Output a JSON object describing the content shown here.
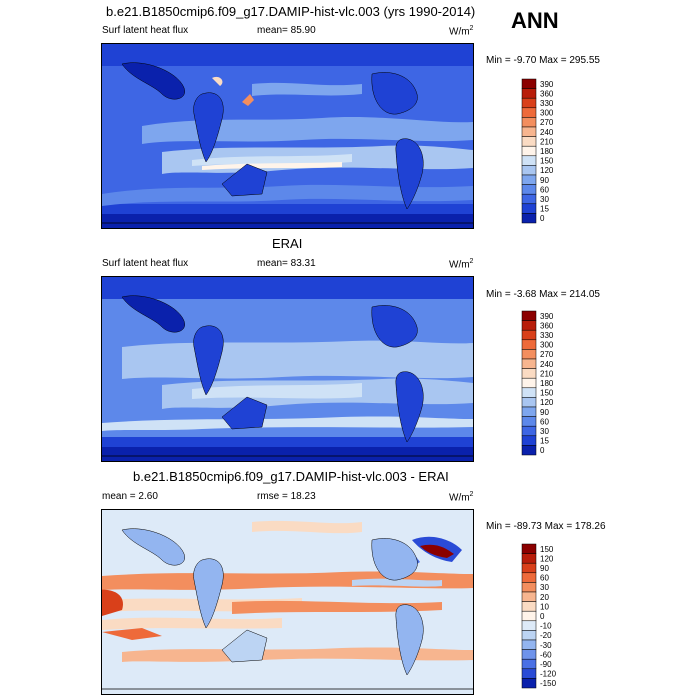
{
  "season": "ANN",
  "panels": [
    {
      "title": "b.e21.B1850cmip6.f09_g17.DAMIP-hist-vlc.003 (yrs 1990-2014)",
      "left_label": "Surf latent heat flux",
      "center_label": "mean=  85.90",
      "units_base": "W/m",
      "units_exp": "2",
      "minmax": "Min =  -9.70 Max = 295.55",
      "colorbar_labels": [
        "390",
        "360",
        "330",
        "300",
        "270",
        "240",
        "210",
        "180",
        "150",
        "120",
        "90",
        "60",
        "30",
        "15",
        "0"
      ],
      "colorbar_colors": [
        "#8b0000",
        "#b81d0a",
        "#d9401a",
        "#ee6a3a",
        "#f38e5e",
        "#f7b58f",
        "#fadbc3",
        "#fff4ea",
        "#cfe2f6",
        "#a9c6f1",
        "#7ea6ee",
        "#5d88ea",
        "#3e66e4",
        "#1f42d4",
        "#0a21ac"
      ]
    },
    {
      "title": "ERAI",
      "left_label": "Surf latent heat flux",
      "center_label": "mean=  83.31",
      "units_base": "W/m",
      "units_exp": "2",
      "minmax": "Min =  -3.68 Max = 214.05",
      "colorbar_labels": [
        "390",
        "360",
        "330",
        "300",
        "270",
        "240",
        "210",
        "180",
        "150",
        "120",
        "90",
        "60",
        "30",
        "15",
        "0"
      ],
      "colorbar_colors": [
        "#8b0000",
        "#b81d0a",
        "#d9401a",
        "#ee6a3a",
        "#f38e5e",
        "#f7b58f",
        "#fadbc3",
        "#fff4ea",
        "#cfe2f6",
        "#a9c6f1",
        "#7ea6ee",
        "#5d88ea",
        "#3e66e4",
        "#1f42d4",
        "#0a21ac"
      ]
    },
    {
      "title": "b.e21.B1850cmip6.f09_g17.DAMIP-hist-vlc.003 - ERAI",
      "left_label": "mean =   2.60",
      "center_label": "rmse =  18.23",
      "units_base": "W/m",
      "units_exp": "2",
      "minmax": "Min = -89.73 Max = 178.26",
      "colorbar_labels": [
        "150",
        "120",
        "90",
        "60",
        "30",
        "20",
        "10",
        "0",
        "-10",
        "-20",
        "-30",
        "-60",
        "-90",
        "-120",
        "-150"
      ],
      "colorbar_colors": [
        "#8b0000",
        "#b81d0a",
        "#d9401a",
        "#ee6a3a",
        "#f38e5e",
        "#f7b58f",
        "#fadbc3",
        "#fff4ea",
        "#ddeaf8",
        "#bcd4f3",
        "#93b5f0",
        "#6e93eb",
        "#4a70e5",
        "#2a4bd6",
        "#0a21ac"
      ]
    }
  ],
  "chart_data": [
    {
      "type": "heatmap",
      "title": "b.e21.B1850cmip6.f09_g17.DAMIP-hist-vlc.003 (yrs 1990-2014)",
      "variable": "Surf latent heat flux",
      "units": "W/m2",
      "mean": 85.9,
      "min": -9.7,
      "max": 295.55,
      "levels": [
        0,
        15,
        30,
        60,
        90,
        120,
        150,
        180,
        210,
        240,
        270,
        300,
        330,
        360,
        390
      ],
      "map": "global lat-lon, centered on Pacific"
    },
    {
      "type": "heatmap",
      "title": "ERAI",
      "variable": "Surf latent heat flux",
      "units": "W/m2",
      "mean": 83.31,
      "min": -3.68,
      "max": 214.05,
      "levels": [
        0,
        15,
        30,
        60,
        90,
        120,
        150,
        180,
        210,
        240,
        270,
        300,
        330,
        360,
        390
      ],
      "map": "global lat-lon, centered on Pacific"
    },
    {
      "type": "heatmap",
      "title": "b.e21.B1850cmip6.f09_g17.DAMIP-hist-vlc.003 - ERAI",
      "units": "W/m2",
      "mean": 2.6,
      "rmse": 18.23,
      "min": -89.73,
      "max": 178.26,
      "levels": [
        -150,
        -120,
        -90,
        -60,
        -30,
        -20,
        -10,
        0,
        10,
        20,
        30,
        60,
        90,
        120,
        150
      ],
      "map": "global lat-lon, centered on Pacific"
    }
  ]
}
